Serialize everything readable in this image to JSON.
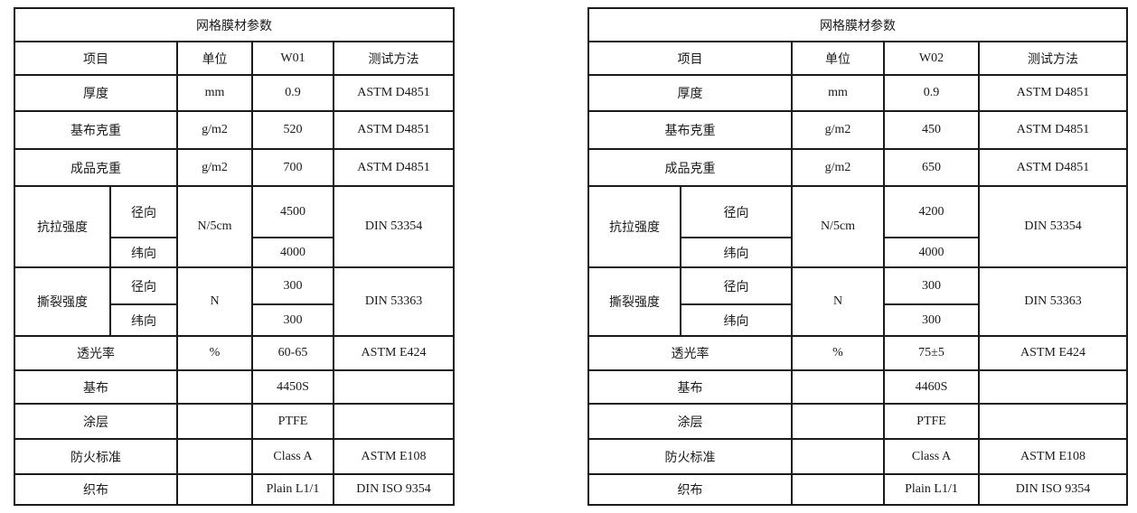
{
  "tables": [
    {
      "title": "网格膜材参数",
      "headers": [
        "项目",
        "单位",
        "W01",
        "测试方法"
      ],
      "rows": [
        {
          "item": "厚度",
          "unit": "mm",
          "value": "0.9",
          "method": "ASTM D4851"
        },
        {
          "item": "基布克重",
          "unit": "g/m2",
          "value": "520",
          "method": "ASTM D4851"
        },
        {
          "item": "成品克重",
          "unit": "g/m2",
          "value": "700",
          "method": "ASTM D4851"
        },
        {
          "item": "抗拉强度",
          "unit": "N/5cm",
          "method": "DIN 53354",
          "sub": [
            {
              "label": "径向",
              "value": "4500"
            },
            {
              "label": "纬向",
              "value": "4000"
            }
          ]
        },
        {
          "item": "撕裂强度",
          "unit": "N",
          "method": "DIN 53363",
          "sub": [
            {
              "label": "径向",
              "value": "300"
            },
            {
              "label": "纬向",
              "value": "300"
            }
          ]
        },
        {
          "item": "透光率",
          "unit": "%",
          "value": "60-65",
          "method": "ASTM E424"
        },
        {
          "item": "基布",
          "unit": "",
          "value": "4450S",
          "method": ""
        },
        {
          "item": "涂层",
          "unit": "",
          "value": "PTFE",
          "method": ""
        },
        {
          "item": "防火标准",
          "unit": "",
          "value": "Class A",
          "method": "ASTM E108"
        },
        {
          "item": "织布",
          "unit": "",
          "value": "Plain L1/1",
          "method": "DIN ISO 9354"
        }
      ]
    },
    {
      "title": "网格膜材参数",
      "headers": [
        "项目",
        "单位",
        "W02",
        "测试方法"
      ],
      "rows": [
        {
          "item": "厚度",
          "unit": "mm",
          "value": "0.9",
          "method": "ASTM D4851"
        },
        {
          "item": "基布克重",
          "unit": "g/m2",
          "value": "450",
          "method": "ASTM D4851"
        },
        {
          "item": "成品克重",
          "unit": "g/m2",
          "value": "650",
          "method": "ASTM D4851"
        },
        {
          "item": "抗拉强度",
          "unit": "N/5cm",
          "method": "DIN 53354",
          "sub": [
            {
              "label": "径向",
              "value": "4200"
            },
            {
              "label": "纬向",
              "value": "4000"
            }
          ]
        },
        {
          "item": "撕裂强度",
          "unit": "N",
          "method": "DIN 53363",
          "sub": [
            {
              "label": "径向",
              "value": "300"
            },
            {
              "label": "纬向",
              "value": "300"
            }
          ]
        },
        {
          "item": "透光率",
          "unit": "%",
          "value": "75±5",
          "method": "ASTM E424"
        },
        {
          "item": "基布",
          "unit": "",
          "value": "4460S",
          "method": ""
        },
        {
          "item": "涂层",
          "unit": "",
          "value": "PTFE",
          "method": ""
        },
        {
          "item": "防火标准",
          "unit": "",
          "value": "Class A",
          "method": "ASTM E108"
        },
        {
          "item": "织布",
          "unit": "",
          "value": "Plain L1/1",
          "method": "DIN ISO 9354"
        }
      ]
    }
  ]
}
